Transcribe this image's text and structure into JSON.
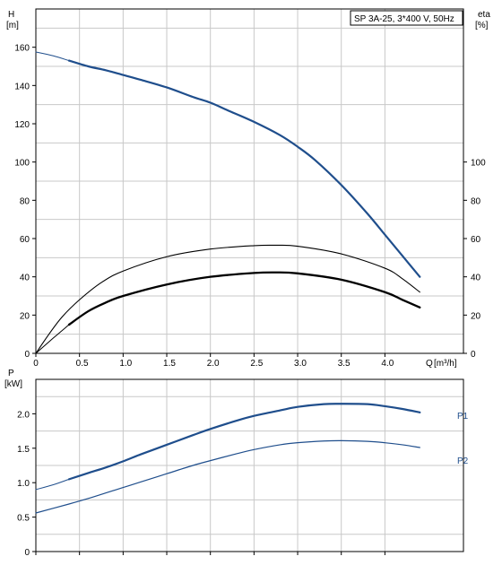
{
  "chart_data": [
    {
      "type": "line",
      "title": "SP 3A-25, 3*400 V, 50Hz",
      "ylabel": "H",
      "ylabel_unit": "[m]",
      "y2label": "eta",
      "y2label_unit": "[%]",
      "xlabel": "Q",
      "xlabel_unit": "[m³/h]",
      "xlim": [
        0,
        4.9
      ],
      "ylim": [
        0,
        180
      ],
      "grid": true,
      "x_ticks": [
        "0",
        "0.5",
        "1.0",
        "1.5",
        "2.0",
        "2.5",
        "3.0",
        "3.5",
        "4.0"
      ],
      "x_tick_values": [
        0,
        0.5,
        1.0,
        1.5,
        2.0,
        2.5,
        3.0,
        3.5,
        4.0
      ],
      "y_ticks": [
        "0",
        "20",
        "40",
        "60",
        "80",
        "100",
        "120",
        "140",
        "160"
      ],
      "y_tick_values": [
        0,
        20,
        40,
        60,
        80,
        100,
        120,
        140,
        160
      ],
      "y2_ticks": [
        "0",
        "20",
        "40",
        "60",
        "80",
        "100"
      ],
      "y2_tick_values": [
        0,
        20,
        40,
        60,
        80,
        100
      ],
      "series": [
        {
          "key": "head_thin",
          "color": "#1f4e8c",
          "x": [
            0,
            0.2,
            0.38
          ],
          "y": [
            157.5,
            155.5,
            153
          ]
        },
        {
          "key": "head",
          "color": "#1f4e8c",
          "x": [
            0.38,
            0.6,
            0.8,
            1.0,
            1.2,
            1.5,
            1.8,
            2.0,
            2.2,
            2.5,
            2.8,
            3.0,
            3.2,
            3.5,
            3.8,
            4.0,
            4.2,
            4.4
          ],
          "y": [
            153,
            150,
            148,
            145.5,
            143,
            139,
            134,
            131,
            127,
            121,
            114,
            108,
            101,
            88,
            73,
            62,
            51,
            40
          ]
        },
        {
          "key": "eta_total_thin",
          "color": "#000000",
          "x": [
            0,
            0.15,
            0.3,
            0.5,
            0.75,
            1.0,
            1.5,
            2.0,
            2.5,
            2.75,
            3.0,
            3.5,
            4.0,
            4.2,
            4.4
          ],
          "y": [
            0,
            10,
            19,
            28,
            37,
            43,
            50.5,
            54.5,
            56.3,
            56.5,
            56,
            52,
            44.5,
            39,
            32
          ]
        },
        {
          "key": "eta_thin",
          "color": "#000000",
          "x": [
            0,
            0.2,
            0.38
          ],
          "y": [
            0,
            8,
            15
          ]
        },
        {
          "key": "eta",
          "color": "#000000",
          "x": [
            0.38,
            0.6,
            0.8,
            1.0,
            1.5,
            2.0,
            2.5,
            2.75,
            3.0,
            3.5,
            4.0,
            4.2,
            4.4
          ],
          "y": [
            15,
            22,
            26.5,
            30,
            36,
            40,
            42,
            42.3,
            41.8,
            38.5,
            32,
            28,
            24
          ]
        }
      ]
    },
    {
      "type": "line",
      "ylabel": "P",
      "ylabel_unit": "[kW]",
      "xlim": [
        0,
        4.9
      ],
      "ylim": [
        0,
        2.5
      ],
      "grid": true,
      "y_ticks": [
        "0",
        "0.5",
        "1.0",
        "1.5",
        "2.0"
      ],
      "y_tick_values": [
        0,
        0.5,
        1.0,
        1.5,
        2.0
      ],
      "series": [
        {
          "key": "p1_thin",
          "name": "P1",
          "color": "#1f4e8c",
          "x": [
            0,
            0.2,
            0.38
          ],
          "y": [
            0.9,
            0.97,
            1.05
          ]
        },
        {
          "key": "p1",
          "name": "P1",
          "color": "#1f4e8c",
          "x": [
            0.38,
            0.6,
            0.8,
            1.0,
            1.2,
            1.5,
            1.8,
            2.0,
            2.3,
            2.5,
            2.8,
            3.0,
            3.3,
            3.5,
            3.8,
            4.0,
            4.2,
            4.4
          ],
          "y": [
            1.05,
            1.14,
            1.22,
            1.31,
            1.41,
            1.55,
            1.69,
            1.78,
            1.9,
            1.97,
            2.05,
            2.1,
            2.14,
            2.145,
            2.14,
            2.11,
            2.07,
            2.02
          ]
        },
        {
          "key": "p2",
          "name": "P2",
          "color": "#1f4e8c",
          "x": [
            0,
            0.38,
            0.6,
            0.8,
            1.0,
            1.2,
            1.5,
            1.8,
            2.0,
            2.3,
            2.5,
            2.8,
            3.0,
            3.3,
            3.5,
            3.8,
            4.0,
            4.2,
            4.4
          ],
          "y": [
            0.56,
            0.69,
            0.77,
            0.85,
            0.93,
            1.01,
            1.13,
            1.25,
            1.32,
            1.42,
            1.48,
            1.55,
            1.58,
            1.605,
            1.61,
            1.6,
            1.58,
            1.55,
            1.51
          ]
        }
      ]
    }
  ]
}
